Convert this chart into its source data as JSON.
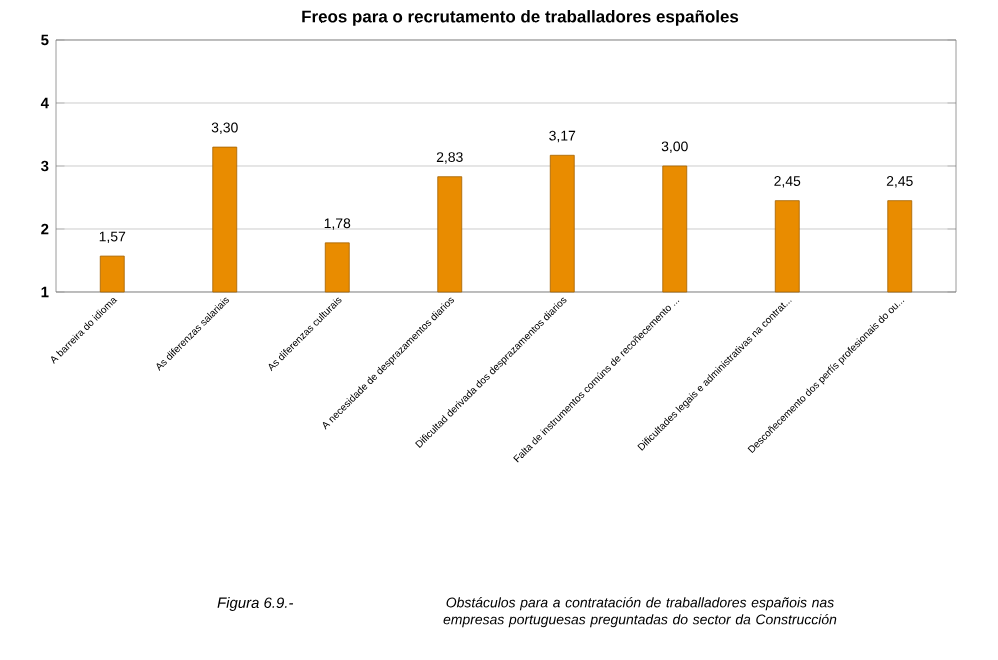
{
  "chart_data": {
    "type": "bar",
    "title": "Freos para o recrutamento de traballadores españoles",
    "categories": [
      "A barreira do idioma",
      "As diferenzas salariais",
      "As diferenzas culturais",
      "A necesidade de desprazamentos diarios",
      "Dificultad derivada dos desprazamentos diarios",
      "Falta de instrumentos comúns de recoñecemento ...",
      "Dificultades legais e administrativas na contrat...",
      "Descoñecemento dos perfís profesionais do ou..."
    ],
    "values": [
      1.57,
      3.3,
      1.78,
      2.83,
      3.17,
      3.0,
      2.45,
      2.45
    ],
    "value_labels": [
      "1,57",
      "3,30",
      "1,78",
      "2,83",
      "3,17",
      "3,00",
      "2,45",
      "2,45"
    ],
    "color": "#e98c00",
    "ylim": [
      1,
      5
    ],
    "yticks": [
      1,
      2,
      3,
      4,
      5
    ],
    "grid": "y",
    "annotations": [
      "Figura 6.9.-",
      "Obstáculos para a contratación de traballadores españois nas empresas portuguesas preguntadas do sector da Construcción"
    ]
  }
}
